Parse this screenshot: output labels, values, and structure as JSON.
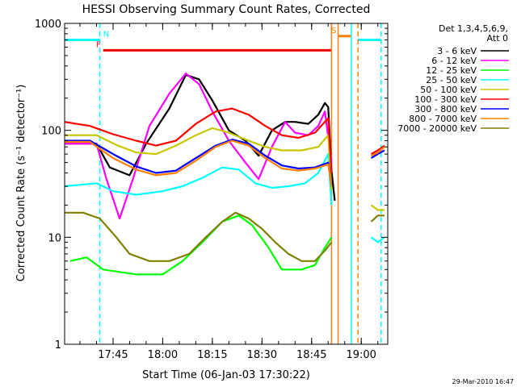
{
  "chart_data": {
    "type": "line",
    "title": "HESSI Observing Summary Count Rates, Corrected",
    "xlabel": "Start Time (06-Jan-03 17:30:22)",
    "ylabel": "Corrected Count Rate (s⁻¹ detector⁻¹)",
    "footer": "29-Mar-2010 16:47",
    "y_scale": "log",
    "ylim": [
      1,
      1000
    ],
    "xlim": [
      "17:30:22",
      "19:08:00"
    ],
    "x_ticks": [
      "17:45",
      "18:00",
      "18:15",
      "18:30",
      "18:45",
      "19:00"
    ],
    "y_ticks": [
      "1",
      "10",
      "100",
      "1000"
    ],
    "legend": {
      "title": "Det 1,3,4,5,6,9,",
      "subtitle": "Att 0",
      "placement": "right"
    },
    "series": [
      {
        "name": "3 - 6 keV",
        "color": "#000000",
        "points": [
          [
            "17:30:22",
            75
          ],
          [
            "17:40",
            75
          ],
          [
            "17:44",
            45
          ],
          [
            "17:50",
            38
          ],
          [
            "17:55",
            75
          ],
          [
            "18:02",
            160
          ],
          [
            "18:07",
            330
          ],
          [
            "18:11",
            300
          ],
          [
            "18:15",
            190
          ],
          [
            "18:20",
            100
          ],
          [
            "18:25",
            80
          ],
          [
            "18:29",
            58
          ],
          [
            "18:33",
            100
          ],
          [
            "18:37",
            120
          ],
          [
            "18:40",
            120
          ],
          [
            "18:44",
            115
          ],
          [
            "18:47",
            140
          ],
          [
            "18:49",
            180
          ],
          [
            "18:50",
            165
          ],
          [
            "18:51",
            42
          ],
          [
            "18:52",
            22
          ]
        ]
      },
      {
        "name": "6 - 12 keV",
        "color": "#ff00ff",
        "points": [
          [
            "17:30:22",
            75
          ],
          [
            "17:40",
            75
          ],
          [
            "17:43",
            35
          ],
          [
            "17:47",
            15
          ],
          [
            "17:51",
            35
          ],
          [
            "17:56",
            110
          ],
          [
            "18:02",
            220
          ],
          [
            "18:07",
            340
          ],
          [
            "18:11",
            270
          ],
          [
            "18:15",
            150
          ],
          [
            "18:20",
            80
          ],
          [
            "18:25",
            50
          ],
          [
            "18:29",
            35
          ],
          [
            "18:33",
            70
          ],
          [
            "18:37",
            120
          ],
          [
            "18:40",
            95
          ],
          [
            "18:44",
            90
          ],
          [
            "18:47",
            110
          ],
          [
            "18:49",
            150
          ],
          [
            "18:51",
            50
          ]
        ]
      },
      {
        "name": "12 - 25 keV",
        "color": "#00ff00",
        "points": [
          [
            "17:32",
            6
          ],
          [
            "17:37",
            6.5
          ],
          [
            "17:42",
            5
          ],
          [
            "17:52",
            4.5
          ],
          [
            "18:00",
            4.5
          ],
          [
            "18:06",
            6
          ],
          [
            "18:12",
            9
          ],
          [
            "18:18",
            14
          ],
          [
            "18:23",
            16
          ],
          [
            "18:27",
            13
          ],
          [
            "18:32",
            8
          ],
          [
            "18:36",
            5
          ],
          [
            "18:42",
            5
          ],
          [
            "18:46",
            5.5
          ],
          [
            "18:49",
            8
          ],
          [
            "18:51",
            10
          ]
        ]
      },
      {
        "name": "25 - 50 keV",
        "color": "#00ffff",
        "points": [
          [
            "17:30:22",
            30
          ],
          [
            "17:40",
            32
          ],
          [
            "17:45",
            27
          ],
          [
            "17:52",
            25
          ],
          [
            "18:00",
            27
          ],
          [
            "18:06",
            30
          ],
          [
            "18:12",
            36
          ],
          [
            "18:18",
            45
          ],
          [
            "18:23",
            43
          ],
          [
            "18:28",
            32
          ],
          [
            "18:33",
            29
          ],
          [
            "18:38",
            30
          ],
          [
            "18:43",
            32
          ],
          [
            "18:47",
            40
          ],
          [
            "18:50",
            60
          ],
          [
            "18:51",
            20
          ]
        ]
      },
      {
        "name": "50 - 100 keV",
        "color": "#c8c800",
        "points": [
          [
            "17:30:22",
            90
          ],
          [
            "17:40",
            90
          ],
          [
            "17:46",
            73
          ],
          [
            "17:52",
            62
          ],
          [
            "17:58",
            60
          ],
          [
            "18:04",
            72
          ],
          [
            "18:10",
            90
          ],
          [
            "18:15",
            105
          ],
          [
            "18:20",
            95
          ],
          [
            "18:26",
            80
          ],
          [
            "18:31",
            70
          ],
          [
            "18:36",
            65
          ],
          [
            "18:42",
            65
          ],
          [
            "18:47",
            70
          ],
          [
            "18:50",
            90
          ],
          [
            "18:51",
            28
          ]
        ]
      },
      {
        "name": "100 - 300 keV",
        "color": "#ff0000",
        "points": [
          [
            "17:30:22",
            120
          ],
          [
            "17:38",
            110
          ],
          [
            "17:45",
            92
          ],
          [
            "17:52",
            80
          ],
          [
            "17:58",
            72
          ],
          [
            "18:04",
            80
          ],
          [
            "18:10",
            115
          ],
          [
            "18:16",
            150
          ],
          [
            "18:21",
            160
          ],
          [
            "18:26",
            140
          ],
          [
            "18:31",
            110
          ],
          [
            "18:36",
            90
          ],
          [
            "18:41",
            85
          ],
          [
            "18:46",
            95
          ],
          [
            "18:50",
            130
          ],
          [
            "18:51",
            40
          ]
        ]
      },
      {
        "name": "300 - 800 keV",
        "color": "#0000ff",
        "points": [
          [
            "17:30:22",
            80
          ],
          [
            "17:38",
            80
          ],
          [
            "17:45",
            60
          ],
          [
            "17:52",
            46
          ],
          [
            "17:58",
            40
          ],
          [
            "18:04",
            42
          ],
          [
            "18:10",
            55
          ],
          [
            "18:16",
            72
          ],
          [
            "18:21",
            82
          ],
          [
            "18:26",
            75
          ],
          [
            "18:31",
            58
          ],
          [
            "18:36",
            47
          ],
          [
            "18:41",
            44
          ],
          [
            "18:46",
            45
          ],
          [
            "18:50",
            50
          ],
          [
            "18:51",
            30
          ]
        ]
      },
      {
        "name": "800 - 7000 keV",
        "color": "#ff8000",
        "points": [
          [
            "17:30:22",
            78
          ],
          [
            "17:38",
            78
          ],
          [
            "17:45",
            55
          ],
          [
            "17:52",
            43
          ],
          [
            "17:58",
            38
          ],
          [
            "18:04",
            40
          ],
          [
            "18:10",
            52
          ],
          [
            "18:16",
            70
          ],
          [
            "18:21",
            80
          ],
          [
            "18:26",
            72
          ],
          [
            "18:31",
            55
          ],
          [
            "18:36",
            44
          ],
          [
            "18:41",
            42
          ],
          [
            "18:46",
            44
          ],
          [
            "18:50",
            48
          ],
          [
            "18:51",
            30
          ]
        ]
      },
      {
        "name": "7000 - 20000 keV",
        "color": "#808000",
        "points": [
          [
            "17:30:22",
            17
          ],
          [
            "17:36",
            17
          ],
          [
            "17:41",
            15
          ],
          [
            "17:46",
            10
          ],
          [
            "17:50",
            7
          ],
          [
            "17:56",
            6
          ],
          [
            "18:02",
            6
          ],
          [
            "18:08",
            7
          ],
          [
            "18:13",
            10
          ],
          [
            "18:18",
            14
          ],
          [
            "18:22",
            17
          ],
          [
            "18:26",
            15
          ],
          [
            "18:30",
            12
          ],
          [
            "18:34",
            9
          ],
          [
            "18:38",
            7
          ],
          [
            "18:42",
            6
          ],
          [
            "18:46",
            6
          ],
          [
            "18:49",
            7.5
          ],
          [
            "18:51",
            9
          ]
        ]
      }
    ],
    "post_gap_series": [
      {
        "color": "#ff0000",
        "points": [
          [
            "19:03",
            60
          ],
          [
            "19:05",
            65
          ],
          [
            "19:07",
            72
          ]
        ]
      },
      {
        "color": "#0000ff",
        "points": [
          [
            "19:03",
            55
          ],
          [
            "19:05",
            60
          ],
          [
            "19:07",
            65
          ]
        ]
      },
      {
        "color": "#ff8000",
        "points": [
          [
            "19:03",
            58
          ],
          [
            "19:05",
            62
          ],
          [
            "19:07",
            70
          ]
        ]
      },
      {
        "color": "#c8c800",
        "points": [
          [
            "19:03",
            20
          ],
          [
            "19:05",
            18
          ],
          [
            "19:07",
            18
          ]
        ]
      },
      {
        "color": "#00ffff",
        "points": [
          [
            "19:03",
            10
          ],
          [
            "19:05",
            9
          ],
          [
            "19:07",
            10
          ]
        ]
      },
      {
        "color": "#808000",
        "points": [
          [
            "19:03",
            14
          ],
          [
            "19:05",
            16
          ],
          [
            "19:07",
            16
          ]
        ]
      }
    ],
    "flag_bars": [
      {
        "label": "N",
        "color": "#00ffff",
        "from": "17:30:22",
        "to": "17:41",
        "level": 700
      },
      {
        "label": "F",
        "color": "#ff0000",
        "from": "17:42",
        "to": "18:51",
        "level": 560
      },
      {
        "label": "S",
        "color": "#ff8000",
        "from": "18:53",
        "to": "18:57",
        "level": 760
      },
      {
        "label": "",
        "color": "#00ffff",
        "from": "18:59",
        "to": "19:06",
        "level": 700
      }
    ],
    "vertical_markers": [
      {
        "color": "#00ffff",
        "style": "dashed",
        "time": "17:41"
      },
      {
        "color": "#ff8000",
        "style": "solid",
        "time": "18:51"
      },
      {
        "color": "#ff8000",
        "style": "solid",
        "time": "18:53"
      },
      {
        "color": "#00ffff",
        "style": "solid",
        "time": "18:57"
      },
      {
        "color": "#ff8000",
        "style": "dashed",
        "time": "18:59"
      },
      {
        "color": "#00ffff",
        "style": "dashed",
        "time": "19:06"
      }
    ]
  }
}
